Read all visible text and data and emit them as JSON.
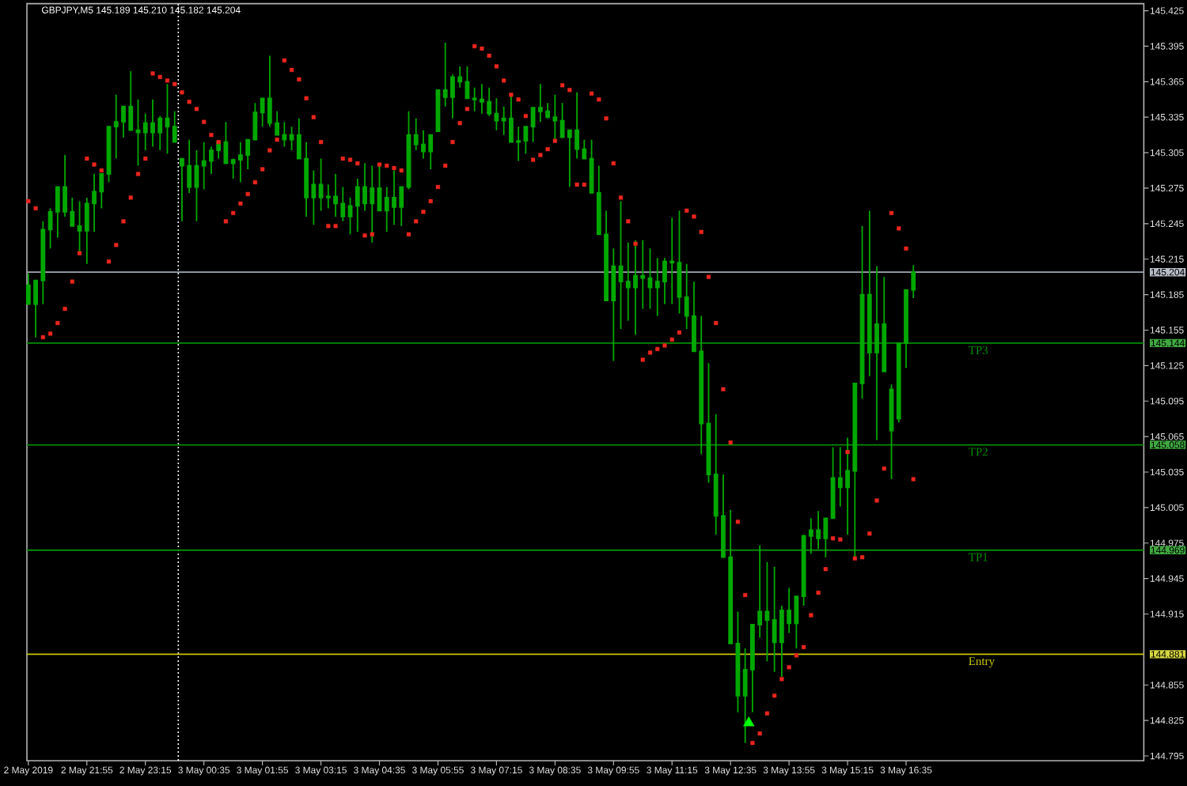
{
  "chart_data": {
    "type": "candlestick",
    "title": "GBPJPY,M5 145.189 145.210 145.182 145.204",
    "color": "#00a800",
    "x": [
      "2019-05-02T20:35",
      "2019-05-02T20:45",
      "2019-05-02T20:55",
      "2019-05-02T21:05",
      "2019-05-02T21:15",
      "2019-05-02T21:25",
      "2019-05-02T21:35",
      "2019-05-02T21:45",
      "2019-05-02T21:55",
      "2019-05-02T22:05",
      "2019-05-02T22:15",
      "2019-05-02T22:25",
      "2019-05-02T22:35",
      "2019-05-02T22:45",
      "2019-05-02T22:55",
      "2019-05-02T23:05",
      "2019-05-02T23:15",
      "2019-05-02T23:25",
      "2019-05-02T23:35",
      "2019-05-02T23:45",
      "2019-05-02T23:55",
      "2019-05-03T00:05",
      "2019-05-03T00:15",
      "2019-05-03T00:25",
      "2019-05-03T00:35",
      "2019-05-03T00:45",
      "2019-05-03T00:55",
      "2019-05-03T01:05",
      "2019-05-03T01:15",
      "2019-05-03T01:25",
      "2019-05-03T01:35",
      "2019-05-03T01:45",
      "2019-05-03T01:55",
      "2019-05-03T02:05",
      "2019-05-03T02:15",
      "2019-05-03T02:25",
      "2019-05-03T02:35",
      "2019-05-03T02:45",
      "2019-05-03T02:55",
      "2019-05-03T03:05",
      "2019-05-03T03:15",
      "2019-05-03T03:25",
      "2019-05-03T03:35",
      "2019-05-03T03:45",
      "2019-05-03T03:55",
      "2019-05-03T04:05",
      "2019-05-03T04:15",
      "2019-05-03T04:25",
      "2019-05-03T04:35",
      "2019-05-03T04:45",
      "2019-05-03T04:55",
      "2019-05-03T05:05",
      "2019-05-03T05:15",
      "2019-05-03T05:25",
      "2019-05-03T05:35",
      "2019-05-03T05:45",
      "2019-05-03T05:55",
      "2019-05-03T06:05",
      "2019-05-03T06:15",
      "2019-05-03T06:25",
      "2019-05-03T06:35",
      "2019-05-03T06:45",
      "2019-05-03T06:55",
      "2019-05-03T07:05",
      "2019-05-03T07:15",
      "2019-05-03T07:25",
      "2019-05-03T07:35",
      "2019-05-03T07:45",
      "2019-05-03T07:55",
      "2019-05-03T08:05",
      "2019-05-03T08:15",
      "2019-05-03T08:25",
      "2019-05-03T08:35",
      "2019-05-03T08:45",
      "2019-05-03T08:55",
      "2019-05-03T09:05",
      "2019-05-03T09:15",
      "2019-05-03T09:25",
      "2019-05-03T09:35",
      "2019-05-03T09:45",
      "2019-05-03T09:55",
      "2019-05-03T10:05",
      "2019-05-03T10:15",
      "2019-05-03T10:25",
      "2019-05-03T10:35",
      "2019-05-03T10:45",
      "2019-05-03T10:55",
      "2019-05-03T11:05",
      "2019-05-03T11:15",
      "2019-05-03T11:25",
      "2019-05-03T11:35",
      "2019-05-03T11:45",
      "2019-05-03T11:55",
      "2019-05-03T12:05",
      "2019-05-03T12:15",
      "2019-05-03T12:25",
      "2019-05-03T12:35",
      "2019-05-03T12:45",
      "2019-05-03T12:55",
      "2019-05-03T13:05",
      "2019-05-03T13:15",
      "2019-05-03T13:25",
      "2019-05-03T13:35",
      "2019-05-03T13:45",
      "2019-05-03T13:55",
      "2019-05-03T14:05",
      "2019-05-03T14:15",
      "2019-05-03T14:25",
      "2019-05-03T14:35",
      "2019-05-03T14:45",
      "2019-05-03T14:55",
      "2019-05-03T15:05",
      "2019-05-03T15:15",
      "2019-05-03T15:25",
      "2019-05-03T15:35",
      "2019-05-03T15:45",
      "2019-05-03T15:55",
      "2019-05-03T16:05",
      "2019-05-03T16:15",
      "2019-05-03T16:25",
      "2019-05-03T16:35",
      "2019-05-03T16:45"
    ],
    "ohlc": [
      [
        145.193,
        145.203,
        145.177,
        145.177
      ],
      [
        145.177,
        145.197,
        145.149,
        145.197
      ],
      [
        145.197,
        145.247,
        145.177,
        145.24
      ],
      [
        145.24,
        145.258,
        145.224,
        145.255
      ],
      [
        145.255,
        145.276,
        145.233,
        145.276
      ],
      [
        145.276,
        145.303,
        145.251,
        145.255
      ],
      [
        145.255,
        145.267,
        145.243,
        145.243
      ],
      [
        145.243,
        145.264,
        145.22,
        145.239
      ],
      [
        145.239,
        145.267,
        145.211,
        145.262
      ],
      [
        145.262,
        145.287,
        145.238,
        145.272
      ],
      [
        145.272,
        145.287,
        145.258,
        145.287
      ],
      [
        145.287,
        145.327,
        145.28,
        145.327
      ],
      [
        145.327,
        145.354,
        145.3,
        145.331
      ],
      [
        145.331,
        145.344,
        145.318,
        145.344
      ],
      [
        145.344,
        145.374,
        145.324,
        145.324
      ],
      [
        145.324,
        145.35,
        145.294,
        145.322
      ],
      [
        145.322,
        145.338,
        145.307,
        145.33
      ],
      [
        145.33,
        145.35,
        145.31,
        145.322
      ],
      [
        145.322,
        145.336,
        145.307,
        145.334
      ],
      [
        145.334,
        145.363,
        145.304,
        145.327
      ],
      [
        145.327,
        145.34,
        145.314,
        145.314
      ],
      [
        145.3,
        145.3,
        145.247,
        145.294
      ],
      [
        145.294,
        145.316,
        145.271,
        145.276
      ],
      [
        145.276,
        145.307,
        145.247,
        145.294
      ],
      [
        145.294,
        145.314,
        145.274,
        145.298
      ],
      [
        145.298,
        145.31,
        145.287,
        145.307
      ],
      [
        145.307,
        145.314,
        145.3,
        145.314
      ],
      [
        145.314,
        145.331,
        145.296,
        145.296
      ],
      [
        145.296,
        145.3,
        145.283,
        145.299
      ],
      [
        145.299,
        145.314,
        145.28,
        145.303
      ],
      [
        145.303,
        145.316,
        145.291,
        145.316
      ],
      [
        145.316,
        145.347,
        145.316,
        145.339
      ],
      [
        145.339,
        145.351,
        145.327,
        145.351
      ],
      [
        145.351,
        145.387,
        145.327,
        145.33
      ],
      [
        145.33,
        145.34,
        145.32,
        145.32
      ],
      [
        145.32,
        145.331,
        145.31,
        145.316
      ],
      [
        145.316,
        145.327,
        145.307,
        145.32
      ],
      [
        145.32,
        145.334,
        145.3,
        145.3
      ],
      [
        145.3,
        145.314,
        145.251,
        145.267
      ],
      [
        145.267,
        145.29,
        145.244,
        145.278
      ],
      [
        145.278,
        145.3,
        145.256,
        145.267
      ],
      [
        145.267,
        145.278,
        145.258,
        145.268
      ],
      [
        145.268,
        145.287,
        145.251,
        145.262
      ],
      [
        145.262,
        145.276,
        145.247,
        145.251
      ],
      [
        145.251,
        145.267,
        145.236,
        145.26
      ],
      [
        145.26,
        145.283,
        145.238,
        145.276
      ],
      [
        145.276,
        145.296,
        145.256,
        145.262
      ],
      [
        145.262,
        145.294,
        145.229,
        145.275
      ],
      [
        145.275,
        145.294,
        145.256,
        145.256
      ],
      [
        145.256,
        145.276,
        145.238,
        145.267
      ],
      [
        145.267,
        145.29,
        145.244,
        145.259
      ],
      [
        145.259,
        145.276,
        145.243,
        145.276
      ],
      [
        145.276,
        145.34,
        145.274,
        145.32
      ],
      [
        145.32,
        145.334,
        145.307,
        145.312
      ],
      [
        145.312,
        145.324,
        145.3,
        145.306
      ],
      [
        145.306,
        145.32,
        145.291,
        145.32
      ],
      [
        145.323,
        145.358,
        145.323,
        145.358
      ],
      [
        145.358,
        145.398,
        145.344,
        145.352
      ],
      [
        145.352,
        145.371,
        145.334,
        145.369
      ],
      [
        145.369,
        145.378,
        145.36,
        145.365
      ],
      [
        145.365,
        145.378,
        145.351,
        145.351
      ],
      [
        145.351,
        145.36,
        145.34,
        145.35
      ],
      [
        145.35,
        145.363,
        145.338,
        145.348
      ],
      [
        145.348,
        145.36,
        145.336,
        145.338
      ],
      [
        145.338,
        145.351,
        145.324,
        145.332
      ],
      [
        145.332,
        145.344,
        145.32,
        145.334
      ],
      [
        145.334,
        145.354,
        145.314,
        145.314
      ],
      [
        145.314,
        145.327,
        145.298,
        145.315
      ],
      [
        145.315,
        145.327,
        145.304,
        145.327
      ],
      [
        145.327,
        145.343,
        145.314,
        145.343
      ],
      [
        145.343,
        145.363,
        145.331,
        145.34
      ],
      [
        145.34,
        145.347,
        145.334,
        145.335
      ],
      [
        145.335,
        145.354,
        145.316,
        145.332
      ],
      [
        145.332,
        145.347,
        145.318,
        145.318
      ],
      [
        145.318,
        145.324,
        145.276,
        145.324
      ],
      [
        145.324,
        145.356,
        145.3,
        145.308
      ],
      [
        145.308,
        145.316,
        145.3,
        145.3
      ],
      [
        145.3,
        145.316,
        145.271,
        145.271
      ],
      [
        145.271,
        145.294,
        145.236,
        145.236
      ],
      [
        145.236,
        145.256,
        145.18,
        145.18
      ],
      [
        145.18,
        145.224,
        145.129,
        145.209
      ],
      [
        145.209,
        145.264,
        145.156,
        145.196
      ],
      [
        145.196,
        145.229,
        145.163,
        145.191
      ],
      [
        145.191,
        145.231,
        145.151,
        145.201
      ],
      [
        145.201,
        145.231,
        145.173,
        145.199
      ],
      [
        145.199,
        145.224,
        145.173,
        145.191
      ],
      [
        145.191,
        145.216,
        145.167,
        145.196
      ],
      [
        145.196,
        145.216,
        145.177,
        145.213
      ],
      [
        145.213,
        145.25,
        145.177,
        145.212
      ],
      [
        145.212,
        145.256,
        145.169,
        145.183
      ],
      [
        145.183,
        145.211,
        145.156,
        145.167
      ],
      [
        145.167,
        145.196,
        145.137,
        145.137
      ],
      [
        145.137,
        145.167,
        145.05,
        145.076
      ],
      [
        145.076,
        145.127,
        145.026,
        145.033
      ],
      [
        145.033,
        145.084,
        144.982,
        144.998
      ],
      [
        144.998,
        145.033,
        144.963,
        144.963
      ],
      [
        144.963,
        145.003,
        144.89,
        144.89
      ],
      [
        144.89,
        144.917,
        144.832,
        144.846
      ],
      [
        144.846,
        144.886,
        144.806,
        144.868
      ],
      [
        144.868,
        144.906,
        144.832,
        144.906
      ],
      [
        144.906,
        144.973,
        144.895,
        144.917
      ],
      [
        144.917,
        144.959,
        144.875,
        144.91
      ],
      [
        144.91,
        144.955,
        144.866,
        144.891
      ],
      [
        144.891,
        144.922,
        144.862,
        144.918
      ],
      [
        144.918,
        144.937,
        144.899,
        144.907
      ],
      [
        144.907,
        144.93,
        144.886,
        144.93
      ],
      [
        144.93,
        144.982,
        144.922,
        144.981
      ],
      [
        144.981,
        144.996,
        144.966,
        144.986
      ],
      [
        144.986,
        145.002,
        144.97,
        144.979
      ],
      [
        144.979,
        144.996,
        144.963,
        144.996
      ],
      [
        144.996,
        145.056,
        144.996,
        145.03
      ],
      [
        145.03,
        145.056,
        145.006,
        145.022
      ],
      [
        145.022,
        145.064,
        144.982,
        145.036
      ],
      [
        145.036,
        145.11,
        144.962,
        145.11
      ],
      [
        145.11,
        145.243,
        145.097,
        145.185
      ],
      [
        145.185,
        145.256,
        145.116,
        145.136
      ],
      [
        145.136,
        145.209,
        145.062,
        145.16
      ],
      [
        145.16,
        145.2,
        145.12,
        145.12
      ],
      [
        145.105,
        145.109,
        145.029,
        145.07
      ],
      [
        145.08,
        145.144,
        145.077,
        145.144
      ],
      [
        145.144,
        145.189,
        145.123,
        145.189
      ],
      [
        145.189,
        145.21,
        145.182,
        145.204
      ]
    ],
    "series": [
      {
        "type": "scatter",
        "color": "#e8261e",
        "marker": "square",
        "values": [
          145.264,
          145.258,
          145.149,
          145.152,
          145.161,
          145.173,
          145.196,
          145.22,
          145.3,
          145.295,
          145.29,
          145.213,
          145.227,
          145.247,
          145.267,
          145.287,
          145.3,
          145.372,
          145.369,
          145.366,
          145.363,
          145.356,
          145.348,
          145.342,
          145.331,
          145.32,
          145.314,
          145.247,
          145.254,
          145.262,
          145.27,
          145.28,
          145.291,
          145.307,
          145.316,
          145.383,
          145.375,
          145.367,
          145.351,
          145.335,
          145.314,
          145.243,
          145.243,
          145.3,
          145.299,
          145.296,
          145.235,
          145.236,
          145.295,
          145.294,
          145.292,
          145.29,
          145.236,
          145.247,
          145.255,
          145.264,
          145.276,
          145.294,
          145.314,
          145.33,
          145.342,
          145.395,
          145.393,
          145.387,
          145.378,
          145.366,
          145.354,
          145.35,
          145.336,
          145.299,
          145.303,
          145.308,
          145.315,
          145.362,
          145.358,
          145.278,
          145.278,
          145.355,
          145.35,
          145.334,
          145.296,
          145.267,
          145.247,
          145.228,
          145.13,
          145.136,
          145.139,
          145.142,
          145.147,
          145.153,
          145.256,
          145.251,
          145.238,
          145.2,
          145.161,
          145.105,
          145.06,
          144.993,
          144.931,
          144.806,
          144.814,
          144.831,
          144.846,
          144.86,
          144.87,
          144.88,
          144.887,
          144.914,
          144.933,
          144.953,
          144.979,
          144.978,
          145.052,
          144.962,
          144.963,
          144.983,
          145.011,
          145.038,
          145.254,
          145.241,
          145.224,
          145.029
        ]
      },
      {
        "type": "scatter",
        "color": "#00ff00",
        "marker": "triangle",
        "x": [
          "2019-05-03T13:00"
        ],
        "values": [
          144.823
        ]
      }
    ],
    "xlim": [
      "2019-05-02T20:33",
      "2019-05-03T22:00"
    ],
    "ylim": [
      144.791,
      145.431
    ],
    "xticks": [
      {
        "value": "2019-05-02T20:35",
        "label": "2 May 2019"
      },
      {
        "value": "2019-05-02T21:55",
        "label": "2 May 21:55"
      },
      {
        "value": "2019-05-02T23:15",
        "label": "2 May 23:15"
      },
      {
        "value": "2019-05-03T00:35",
        "label": "3 May 00:35"
      },
      {
        "value": "2019-05-03T01:55",
        "label": "3 May 01:55"
      },
      {
        "value": "2019-05-03T03:15",
        "label": "3 May 03:15"
      },
      {
        "value": "2019-05-03T04:35",
        "label": "3 May 04:35"
      },
      {
        "value": "2019-05-03T05:55",
        "label": "3 May 05:55"
      },
      {
        "value": "2019-05-03T07:15",
        "label": "3 May 07:15"
      },
      {
        "value": "2019-05-03T08:35",
        "label": "3 May 08:35"
      },
      {
        "value": "2019-05-03T09:55",
        "label": "3 May 09:55"
      },
      {
        "value": "2019-05-03T11:15",
        "label": "3 May 11:15"
      },
      {
        "value": "2019-05-03T12:35",
        "label": "3 May 12:35"
      },
      {
        "value": "2019-05-03T13:55",
        "label": "3 May 13:55"
      },
      {
        "value": "2019-05-03T15:15",
        "label": "3 May 15:15"
      },
      {
        "value": "2019-05-03T16:35",
        "label": "3 May 16:35"
      }
    ],
    "yticks": [
      145.425,
      145.395,
      145.365,
      145.335,
      145.305,
      145.275,
      145.245,
      145.215,
      145.185,
      145.155,
      145.125,
      145.095,
      145.065,
      145.035,
      145.005,
      144.975,
      144.945,
      144.915,
      144.855,
      144.825,
      144.795
    ],
    "ref_lines": [
      {
        "axis": "x",
        "value": "2019-05-03T00:00",
        "color": "#ffffff",
        "line_style": "dotted"
      },
      {
        "axis": "y",
        "value": 145.204,
        "color": "#a0a8b4",
        "line_style": "solid"
      },
      {
        "axis": "y",
        "value": 145.144,
        "label": "TP3",
        "color": "#008c00",
        "line_style": "solid"
      },
      {
        "axis": "y",
        "value": 145.058,
        "label": "TP2",
        "color": "#008c00",
        "line_style": "solid"
      },
      {
        "axis": "y",
        "value": 144.969,
        "label": "TP1",
        "color": "#008c00",
        "line_style": "solid"
      },
      {
        "axis": "y",
        "value": 144.881,
        "label": "Entry",
        "color": "#c8c800",
        "line_style": "solid"
      }
    ],
    "annotations": [
      {
        "text": "145.204",
        "x": "2019-05-03T22:00",
        "y": 145.204
      },
      {
        "text": "145.144",
        "x": "2019-05-03T22:00",
        "y": 145.144
      },
      {
        "text": "145.058",
        "x": "2019-05-03T22:00",
        "y": 145.058
      },
      {
        "text": "144.969",
        "x": "2019-05-03T22:00",
        "y": 144.969
      },
      {
        "text": "144.881",
        "x": "2019-05-03T22:00",
        "y": 144.881
      }
    ]
  }
}
